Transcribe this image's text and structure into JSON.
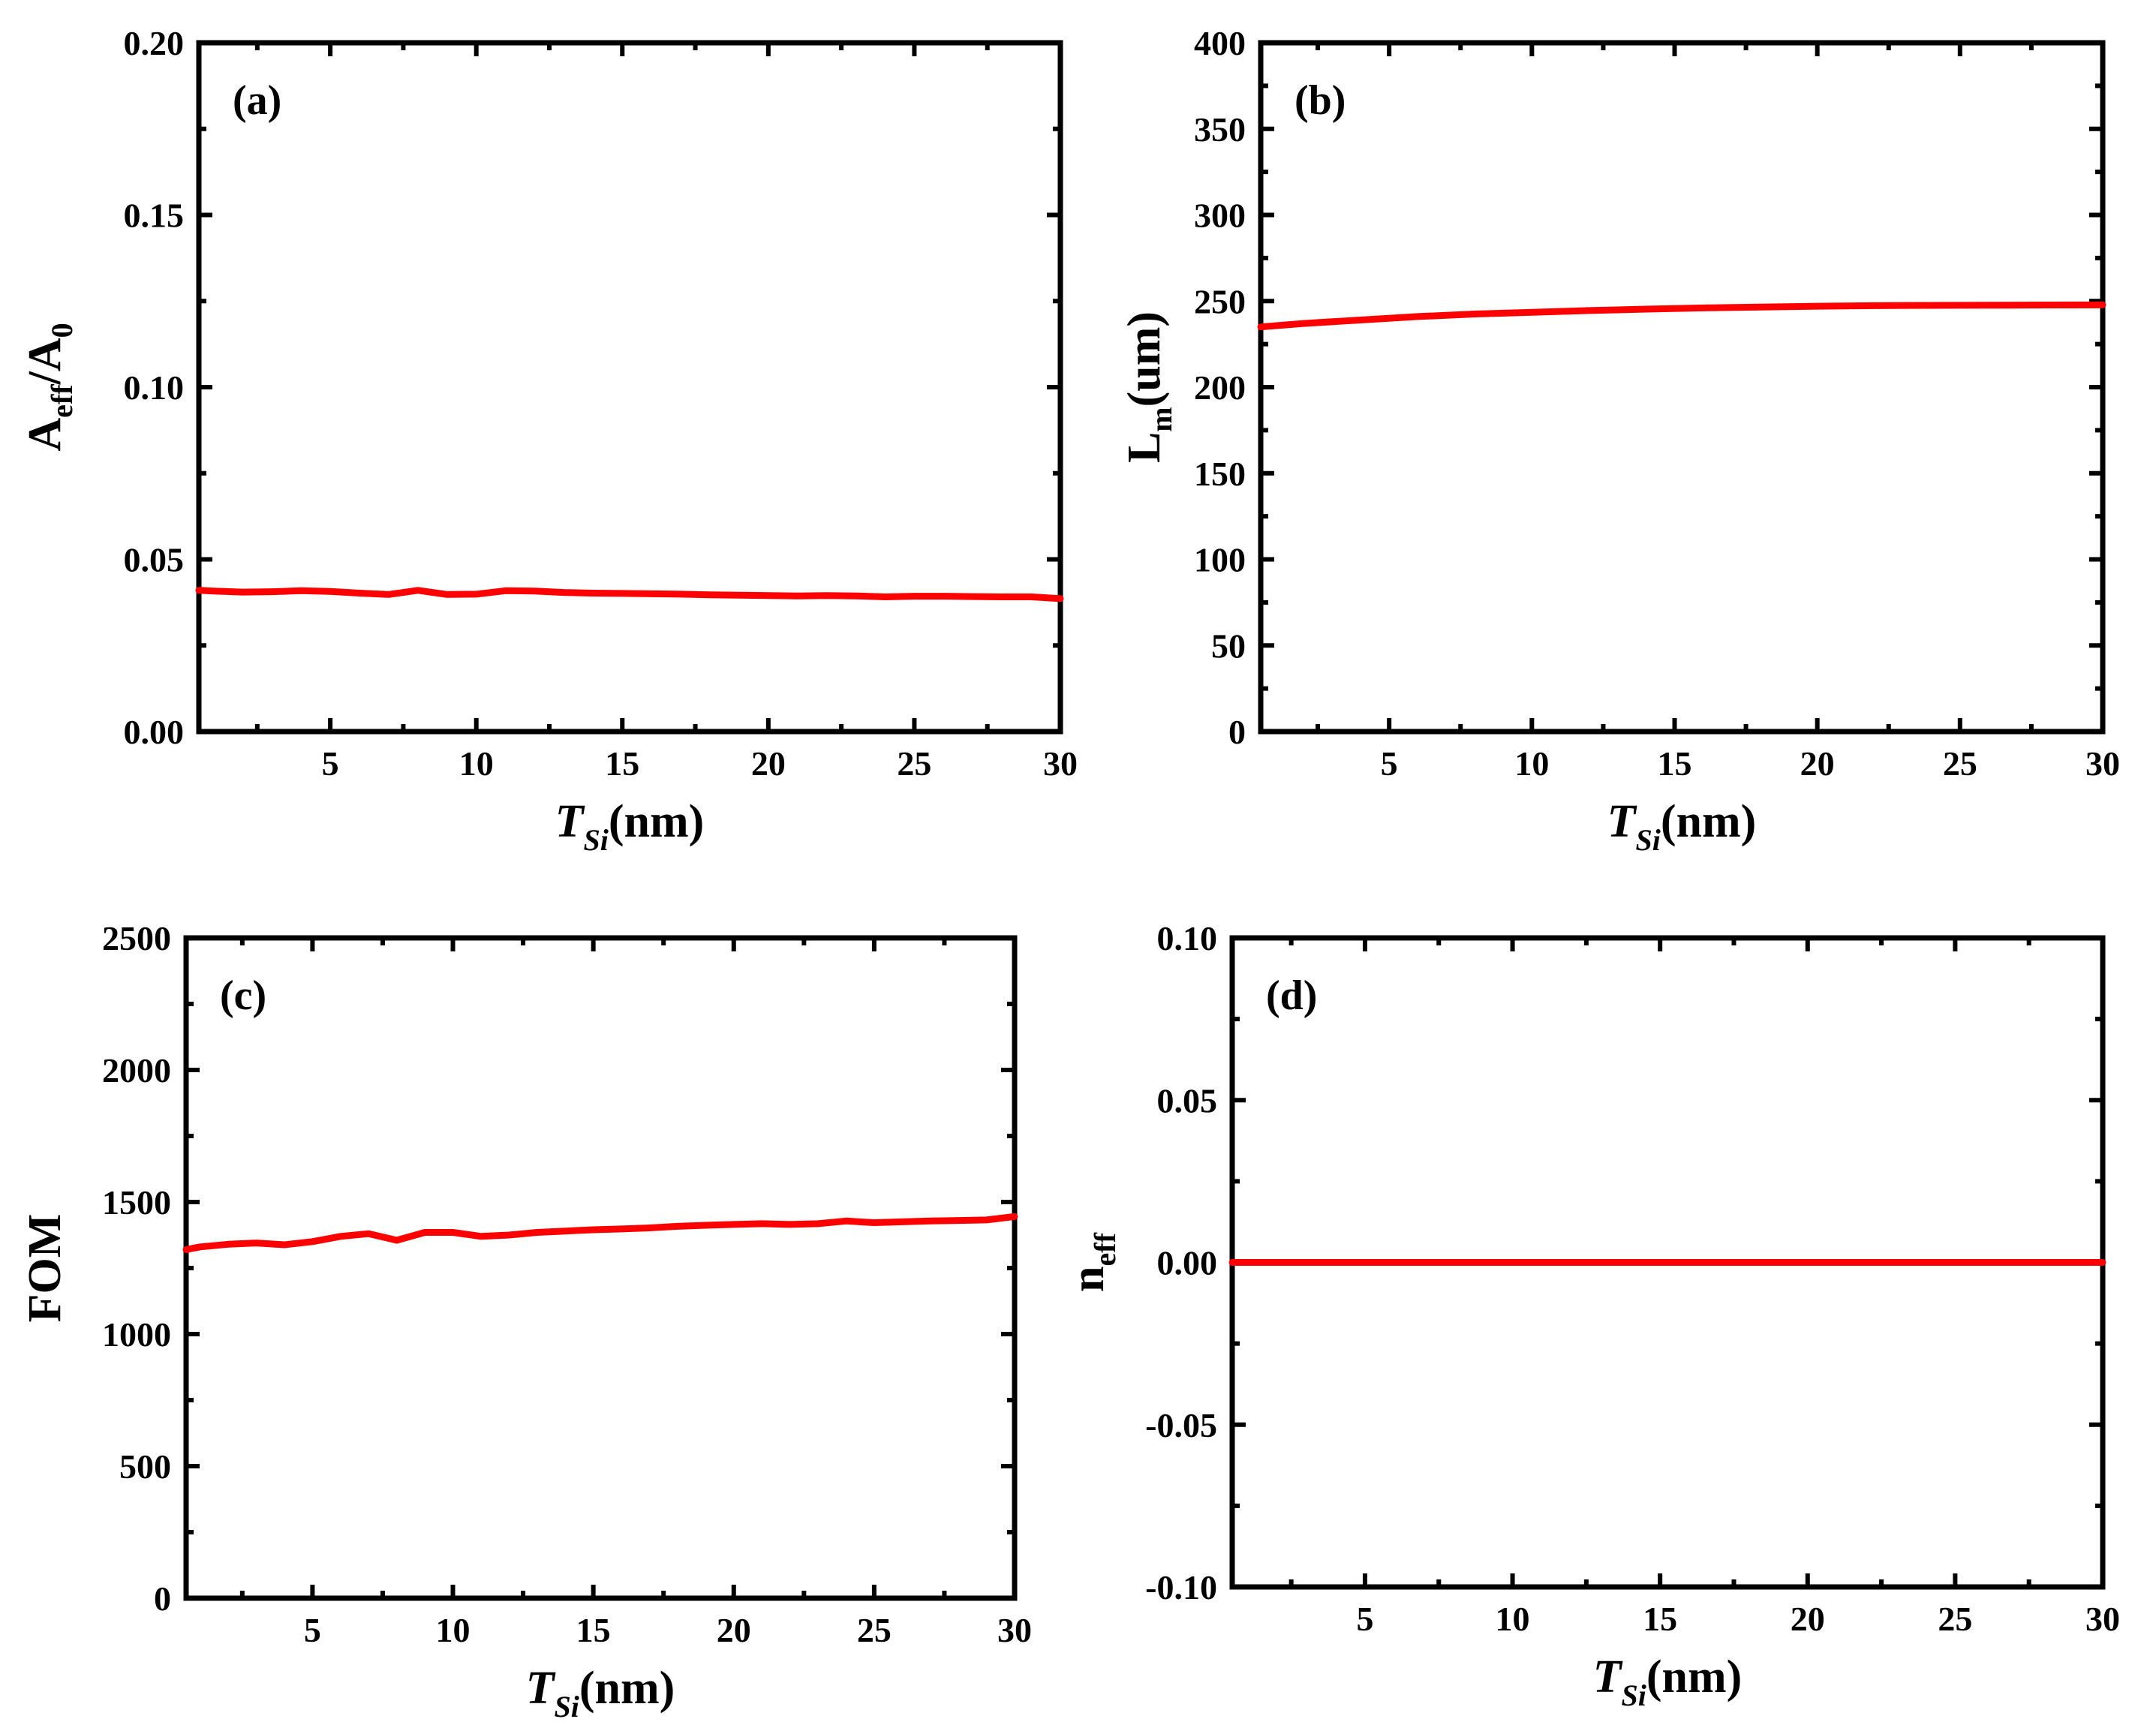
{
  "colors": {
    "series": "#ff0000",
    "axis": "#000000",
    "background": "#ffffff"
  },
  "chart_data": [
    {
      "id": "a",
      "type": "line",
      "panel_label": "(a)",
      "xlabel": {
        "main": "T",
        "sub": "Si",
        "unit": "(nm)"
      },
      "ylabel": {
        "parts": [
          "A",
          "eff",
          "/A",
          "0"
        ]
      },
      "xlim": [
        0.5,
        30
      ],
      "ylim": [
        0,
        0.2
      ],
      "xticks": [
        5,
        10,
        15,
        20,
        25,
        30
      ],
      "xtick_labels": [
        "5",
        "10",
        "15",
        "20",
        "25",
        "30"
      ],
      "yticks": [
        0,
        0.05,
        0.1,
        0.15,
        0.2
      ],
      "ytick_labels": [
        "0.00",
        "0.05",
        "0.10",
        "0.15",
        "0.20"
      ],
      "series": [
        {
          "name": "A_eff/A_0",
          "x": [
            0.5,
            1,
            2,
            3,
            4,
            5,
            6,
            7,
            8,
            9,
            10,
            11,
            12,
            13,
            14,
            15,
            16,
            17,
            18,
            19,
            20,
            21,
            22,
            23,
            24,
            25,
            26,
            27,
            28,
            29,
            30
          ],
          "y": [
            0.041,
            0.0408,
            0.0405,
            0.0406,
            0.0409,
            0.0407,
            0.0402,
            0.0398,
            0.041,
            0.0398,
            0.0399,
            0.0409,
            0.0408,
            0.0404,
            0.0402,
            0.0401,
            0.04,
            0.0399,
            0.0397,
            0.0396,
            0.0395,
            0.0394,
            0.0395,
            0.0394,
            0.0391,
            0.0393,
            0.0393,
            0.0392,
            0.0391,
            0.0391,
            0.0386
          ]
        }
      ]
    },
    {
      "id": "b",
      "type": "line",
      "panel_label": "(b)",
      "xlabel": {
        "main": "T",
        "sub": "Si",
        "unit": "(nm)"
      },
      "ylabel": {
        "parts": [
          "L",
          "m",
          "(um)"
        ]
      },
      "xlim": [
        0.5,
        30
      ],
      "ylim": [
        0,
        400
      ],
      "xticks": [
        5,
        10,
        15,
        20,
        25,
        30
      ],
      "xtick_labels": [
        "5",
        "10",
        "15",
        "20",
        "25",
        "30"
      ],
      "yticks": [
        0,
        50,
        100,
        150,
        200,
        250,
        300,
        350,
        400
      ],
      "ytick_labels": [
        "0",
        "50",
        "100",
        "150",
        "200",
        "250",
        "300",
        "350",
        "400"
      ],
      "series": [
        {
          "name": "L_m",
          "x": [
            0.5,
            2,
            4,
            6,
            8,
            10,
            12,
            14,
            16,
            18,
            20,
            22,
            24,
            26,
            28,
            30
          ],
          "y": [
            235,
            237,
            239,
            241,
            242.5,
            243.5,
            244.5,
            245.3,
            246,
            246.5,
            247,
            247.3,
            247.5,
            247.6,
            247.7,
            247.8
          ]
        }
      ]
    },
    {
      "id": "c",
      "type": "line",
      "panel_label": "(c)",
      "xlabel": {
        "main": "T",
        "sub": "Si",
        "unit": "(nm)"
      },
      "ylabel": {
        "parts": [
          "FOM"
        ]
      },
      "xlim": [
        0.5,
        30
      ],
      "ylim": [
        0,
        2500
      ],
      "xticks": [
        5,
        10,
        15,
        20,
        25,
        30
      ],
      "xtick_labels": [
        "5",
        "10",
        "15",
        "20",
        "25",
        "30"
      ],
      "yticks": [
        0,
        500,
        1000,
        1500,
        2000,
        2500
      ],
      "ytick_labels": [
        "0",
        "500",
        "1000",
        "1500",
        "2000",
        "2500"
      ],
      "series": [
        {
          "name": "FOM",
          "x": [
            0.5,
            1,
            2,
            3,
            4,
            5,
            6,
            7,
            8,
            9,
            10,
            11,
            12,
            13,
            14,
            15,
            16,
            17,
            18,
            19,
            20,
            21,
            22,
            23,
            24,
            25,
            26,
            27,
            28,
            29,
            30
          ],
          "y": [
            1320,
            1330,
            1340,
            1345,
            1338,
            1350,
            1370,
            1380,
            1355,
            1385,
            1385,
            1370,
            1375,
            1385,
            1390,
            1395,
            1398,
            1402,
            1408,
            1412,
            1415,
            1418,
            1415,
            1418,
            1428,
            1422,
            1425,
            1428,
            1430,
            1432,
            1445
          ]
        }
      ]
    },
    {
      "id": "d",
      "type": "line",
      "panel_label": "(d)",
      "xlabel": {
        "main": "T",
        "sub": "Si",
        "unit": "(nm)"
      },
      "ylabel": {
        "parts": [
          "n",
          "eff"
        ]
      },
      "xlim": [
        0.5,
        30
      ],
      "ylim": [
        -0.1,
        0.1
      ],
      "xticks": [
        5,
        10,
        15,
        20,
        25,
        30
      ],
      "xtick_labels": [
        "5",
        "10",
        "15",
        "20",
        "25",
        "30"
      ],
      "yticks": [
        -0.1,
        -0.05,
        0,
        0.05,
        0.1
      ],
      "ytick_labels": [
        "-0.10",
        "-0.05",
        "0.00",
        "0.05",
        "0.10"
      ],
      "series": [
        {
          "name": "n_eff",
          "x": [
            0.5,
            5,
            10,
            15,
            20,
            25,
            30
          ],
          "y": [
            0,
            0,
            0,
            0,
            0,
            0,
            0
          ]
        }
      ]
    }
  ]
}
